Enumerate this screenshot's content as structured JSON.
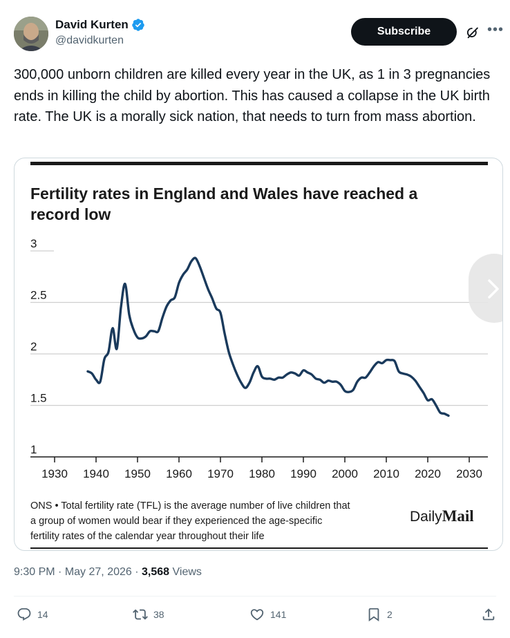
{
  "author": {
    "display_name": "David Kurten",
    "handle": "@davidkurten",
    "verified_color": "#1d9bf0"
  },
  "header_actions": {
    "subscribe_label": "Subscribe",
    "grok_icon": "grok-icon",
    "more_icon": "more-icon"
  },
  "tweet": {
    "text": "300,000 unborn children are killed every year in the UK, as 1 in 3 pregnancies ends in killing the child by abortion. This has caused a collapse in the UK birth rate. The UK is a morally sick nation, that needs to turn from mass abortion."
  },
  "chart_data": {
    "type": "line",
    "title": "Fertility rates in England and Wales have reached a record low",
    "y_ticks": [
      "3",
      "2.5",
      "2",
      "1.5",
      "1"
    ],
    "x_ticks": [
      "1930",
      "1940",
      "1950",
      "1960",
      "1970",
      "1980",
      "1990",
      "2000",
      "2010",
      "2020",
      "2030"
    ],
    "xlim": [
      1930,
      2030
    ],
    "ylim": [
      1,
      3
    ],
    "line_color": "#1a3a5c",
    "series": [
      {
        "x": [
          1938,
          1939,
          1940,
          1941,
          1942,
          1943,
          1944,
          1945,
          1946,
          1947,
          1948,
          1949,
          1950,
          1951,
          1952,
          1953,
          1954,
          1955,
          1956,
          1957,
          1958,
          1959,
          1960,
          1961,
          1962,
          1963,
          1964,
          1965,
          1966,
          1967,
          1968,
          1969,
          1970,
          1971,
          1972,
          1973,
          1974,
          1975,
          1976,
          1977,
          1978,
          1979,
          1980,
          1981,
          1982,
          1983,
          1984,
          1985,
          1986,
          1987,
          1988,
          1989,
          1990,
          1991,
          1992,
          1993,
          1994,
          1995,
          1996,
          1997,
          1998,
          1999,
          2000,
          2001,
          2002,
          2003,
          2004,
          2005,
          2006,
          2007,
          2008,
          2009,
          2010,
          2011,
          2012,
          2013,
          2014,
          2015,
          2016,
          2017,
          2018,
          2019,
          2020,
          2021,
          2022,
          2023,
          2024,
          2025
        ],
        "values": [
          1.83,
          1.81,
          1.75,
          1.73,
          1.95,
          2.02,
          2.25,
          2.05,
          2.45,
          2.68,
          2.38,
          2.24,
          2.16,
          2.15,
          2.17,
          2.22,
          2.22,
          2.22,
          2.35,
          2.46,
          2.52,
          2.55,
          2.69,
          2.77,
          2.82,
          2.9,
          2.93,
          2.85,
          2.74,
          2.63,
          2.54,
          2.44,
          2.4,
          2.2,
          2.02,
          1.9,
          1.8,
          1.72,
          1.67,
          1.72,
          1.82,
          1.88,
          1.78,
          1.76,
          1.76,
          1.75,
          1.77,
          1.77,
          1.8,
          1.82,
          1.81,
          1.79,
          1.84,
          1.82,
          1.8,
          1.76,
          1.75,
          1.72,
          1.74,
          1.73,
          1.73,
          1.7,
          1.64,
          1.63,
          1.65,
          1.73,
          1.77,
          1.77,
          1.82,
          1.88,
          1.92,
          1.91,
          1.94,
          1.94,
          1.93,
          1.83,
          1.81,
          1.8,
          1.78,
          1.74,
          1.68,
          1.62,
          1.55,
          1.56,
          1.5,
          1.43,
          1.42,
          1.4
        ]
      }
    ],
    "footnote": "ONS • Total fertility rate (TFL) is the average number of live children that a group of women would bear if they experienced the age-specific fertility rates of the calendar year throughout their life",
    "footnote_lines": [
      "ONS • Total fertility rate (TFL) is the average number of live children that",
      "a group of women would bear if they experienced the age-specific",
      "fertility rates of the calendar year throughout their life"
    ],
    "source_logo": "DailyMail",
    "source_logo_parts": [
      "Daily",
      "Mail"
    ]
  },
  "meta": {
    "time": "9:30 PM",
    "date": "May 27, 2026",
    "separator": "·",
    "views_count": "3,568",
    "views_label": "Views"
  },
  "actions": {
    "replies": "14",
    "reposts": "38",
    "likes": "141",
    "bookmarks": "2"
  }
}
